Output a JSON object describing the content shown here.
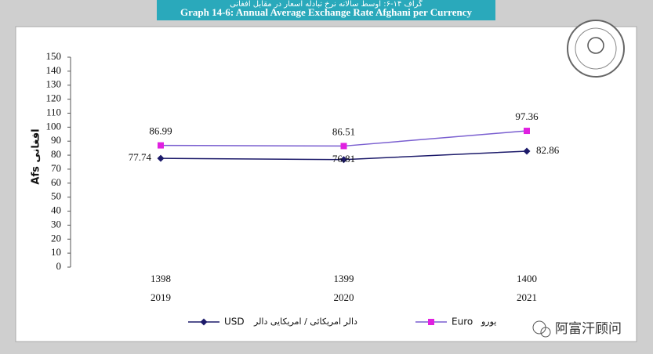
{
  "header": {
    "title_local": "گراف ۱۴-۶: اوسط سالانه نرخ تبادله اسعار در مقابل افغانی",
    "title": "Graph 14-6: Annual Average Exchange Rate Afghani per Currency"
  },
  "watermark": "阿富汗顾问",
  "chart_data": {
    "type": "line",
    "y_label": "Afs افغانی",
    "categories": [
      "1398",
      "1399",
      "1400"
    ],
    "categories_gregorian": [
      "2019",
      "2020",
      "2021"
    ],
    "series": [
      {
        "name": "USD",
        "legend_label_local": "دالر امریکائی / امریکایی دالر",
        "color": "#1c1a6a",
        "marker": "diamond",
        "values": [
          77.74,
          76.81,
          82.86
        ]
      },
      {
        "name": "Euro",
        "legend_label_local": "یورو",
        "color": "#7a5fd0",
        "marker_color": "#e020e0",
        "marker": "square",
        "values": [
          86.99,
          86.51,
          97.36
        ]
      }
    ],
    "ylim": [
      0,
      150
    ],
    "yticks": [
      0,
      10,
      20,
      30,
      40,
      50,
      60,
      70,
      80,
      90,
      100,
      110,
      120,
      130,
      140,
      150
    ],
    "grid": false
  }
}
